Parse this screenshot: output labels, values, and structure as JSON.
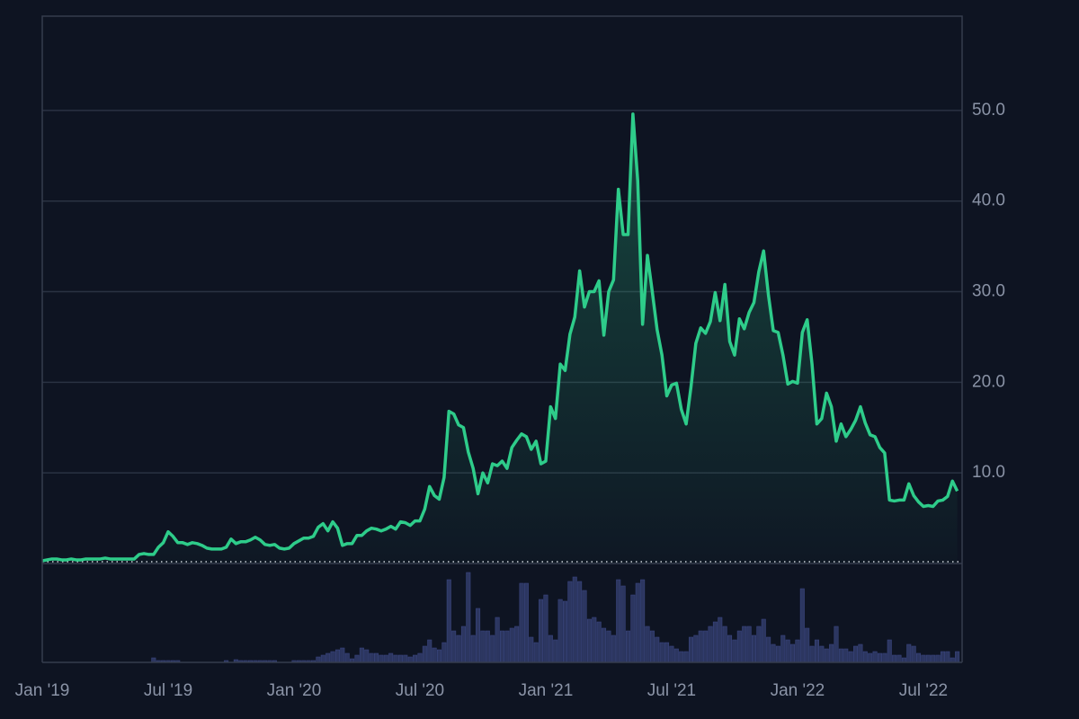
{
  "chart_data": {
    "type": "line",
    "color": "#2ecc8a",
    "grid": true,
    "xlim": [
      0,
      190
    ],
    "xticks": [
      {
        "value": 0,
        "label": "Jan '19"
      },
      {
        "value": 26,
        "label": "Jul '19"
      },
      {
        "value": 52,
        "label": "Jan '20"
      },
      {
        "value": 78,
        "label": "Jul '20"
      },
      {
        "value": 104,
        "label": "Jan '21"
      },
      {
        "value": 130,
        "label": "Jul '21"
      },
      {
        "value": 156,
        "label": "Jan '22"
      },
      {
        "value": 182,
        "label": "Jul '22"
      }
    ],
    "ylim": [
      0,
      60.4
    ],
    "yticks": [
      {
        "value": 10,
        "label": "10.0"
      },
      {
        "value": 20,
        "label": "20.0"
      },
      {
        "value": 30,
        "label": "30.0"
      },
      {
        "value": 40,
        "label": "40.0"
      },
      {
        "value": 50,
        "label": "50.0"
      }
    ],
    "x": [
      0,
      1,
      2,
      3,
      4,
      5,
      6,
      7,
      8,
      9,
      10,
      11,
      12,
      13,
      14,
      15,
      16,
      17,
      18,
      19,
      20,
      21,
      22,
      23,
      24,
      25,
      26,
      27,
      28,
      29,
      30,
      31,
      32,
      33,
      34,
      35,
      36,
      37,
      38,
      39,
      40,
      41,
      42,
      43,
      44,
      45,
      46,
      47,
      48,
      49,
      50,
      51,
      52,
      53,
      54,
      55,
      56,
      57,
      58,
      59,
      60,
      61,
      62,
      63,
      64,
      65,
      66,
      67,
      68,
      69,
      70,
      71,
      72,
      73,
      74,
      75,
      76,
      77,
      78,
      79,
      80,
      81,
      82,
      83,
      84,
      85,
      86,
      87,
      88,
      89,
      90,
      91,
      92,
      93,
      94,
      95,
      96,
      97,
      98,
      99,
      100,
      101,
      102,
      103,
      104,
      105,
      106,
      107,
      108,
      109,
      110,
      111,
      112,
      113,
      114,
      115,
      116,
      117,
      118,
      119,
      120,
      121,
      122,
      123,
      124,
      125,
      126,
      127,
      128,
      129,
      130,
      131,
      132,
      133,
      134,
      135,
      136,
      137,
      138,
      139,
      140,
      141,
      142,
      143,
      144,
      145,
      146,
      147,
      148,
      149,
      150,
      151,
      152,
      153,
      154,
      155,
      156,
      157,
      158,
      159,
      160,
      161,
      162,
      163,
      164,
      165,
      166,
      167,
      168,
      169,
      170,
      171,
      172,
      173,
      174,
      175,
      176,
      177,
      178,
      179,
      180,
      181,
      182,
      183,
      184,
      185,
      186,
      187,
      188,
      189
    ],
    "values": [
      0.3,
      0.4,
      0.5,
      0.5,
      0.4,
      0.4,
      0.5,
      0.4,
      0.4,
      0.5,
      0.5,
      0.5,
      0.5,
      0.6,
      0.5,
      0.5,
      0.5,
      0.5,
      0.5,
      0.5,
      1.0,
      1.1,
      1.0,
      1.0,
      1.8,
      2.3,
      3.5,
      3.0,
      2.3,
      2.3,
      2.1,
      2.3,
      2.2,
      2.0,
      1.7,
      1.6,
      1.6,
      1.6,
      1.8,
      2.7,
      2.2,
      2.4,
      2.4,
      2.6,
      2.9,
      2.6,
      2.1,
      2.0,
      2.1,
      1.7,
      1.6,
      1.7,
      2.2,
      2.5,
      2.8,
      2.8,
      3.0,
      4.0,
      4.4,
      3.6,
      4.6,
      3.9,
      2.0,
      2.2,
      2.2,
      3.1,
      3.1,
      3.6,
      3.9,
      3.8,
      3.6,
      3.8,
      4.1,
      3.8,
      4.6,
      4.5,
      4.2,
      4.7,
      4.7,
      6.0,
      8.5,
      7.5,
      7.1,
      9.5,
      16.8,
      16.5,
      15.3,
      15.0,
      12.3,
      10.5,
      7.7,
      10.0,
      8.9,
      11.0,
      10.8,
      11.3,
      10.5,
      12.8,
      13.6,
      14.3,
      14.0,
      12.6,
      13.5,
      11.0,
      11.3,
      17.3,
      16.0,
      22.0,
      21.3,
      25.3,
      27.2,
      32.3,
      28.3,
      30.0,
      30.0,
      31.2,
      25.2,
      30.0,
      31.3,
      41.3,
      36.3,
      36.3,
      49.6,
      42.2,
      26.4,
      34.0,
      30.0,
      25.8,
      23.0,
      18.5,
      19.7,
      19.9,
      17.0,
      15.4,
      19.5,
      24.3,
      26.0,
      25.4,
      26.7,
      29.9,
      26.8,
      30.8,
      24.5,
      23.0,
      27.0,
      25.9,
      27.7,
      28.8,
      32.2,
      34.5,
      29.6,
      25.7,
      25.5,
      23.0,
      19.8,
      20.1,
      19.9,
      25.5,
      26.9,
      22.0,
      15.4,
      16.0,
      18.8,
      17.3,
      13.5,
      15.4,
      14.0,
      14.8,
      15.8,
      17.3,
      15.5,
      14.2,
      14.0,
      12.8,
      12.2,
      7.0,
      6.9,
      7.0,
      7.0,
      8.8,
      7.5,
      6.8,
      6.3,
      6.4,
      6.3,
      6.9,
      7.0,
      7.4,
      9.1,
      8.0
    ],
    "volume": {
      "type": "bar",
      "color": "#2c3660",
      "lim": [
        0,
        110
      ],
      "values": [
        0,
        0,
        0,
        0,
        0,
        0,
        0,
        0,
        0,
        0,
        0,
        0,
        0,
        0,
        0,
        0,
        0,
        0,
        0,
        0,
        0,
        0,
        0,
        5,
        2,
        2,
        2,
        2,
        2,
        0,
        0,
        0,
        0,
        0,
        0,
        0,
        0,
        0,
        2,
        0,
        3,
        2,
        2,
        2,
        2,
        2,
        2,
        2,
        2,
        0,
        0,
        0,
        2,
        2,
        2,
        2,
        2,
        6,
        8,
        10,
        12,
        14,
        16,
        10,
        4,
        8,
        16,
        14,
        10,
        10,
        8,
        8,
        10,
        8,
        8,
        8,
        6,
        8,
        10,
        18,
        25,
        16,
        14,
        22,
        92,
        35,
        30,
        40,
        100,
        30,
        60,
        35,
        35,
        30,
        50,
        35,
        35,
        38,
        40,
        88,
        88,
        28,
        22,
        70,
        75,
        30,
        25,
        70,
        68,
        90,
        95,
        90,
        80,
        48,
        50,
        45,
        38,
        35,
        30,
        92,
        85,
        35,
        75,
        88,
        92,
        40,
        35,
        28,
        22,
        22,
        18,
        15,
        12,
        12,
        28,
        30,
        35,
        35,
        40,
        45,
        50,
        40,
        30,
        25,
        35,
        40,
        40,
        30,
        40,
        48,
        28,
        20,
        18,
        30,
        25,
        20,
        25,
        82,
        38,
        18,
        25,
        18,
        15,
        20,
        40,
        15,
        15,
        12,
        18,
        20,
        12,
        10,
        12,
        10,
        10,
        25,
        8,
        8,
        5,
        20,
        18,
        10,
        8,
        8,
        8,
        8,
        12,
        12,
        5,
        12
      ]
    }
  }
}
